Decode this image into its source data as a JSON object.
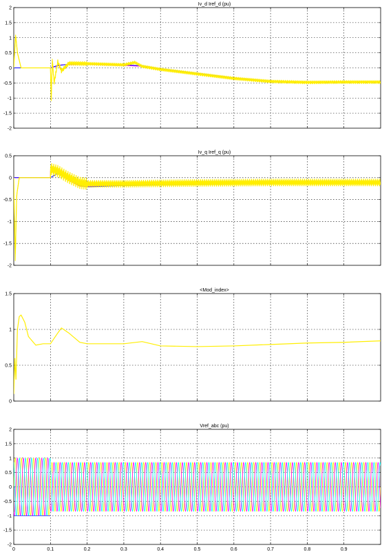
{
  "chart_data": [
    {
      "type": "line",
      "title": "Iv_d Iref_d (pu)",
      "xlim": [
        0,
        1
      ],
      "ylim": [
        -2,
        2
      ],
      "xticks": [
        0,
        0.1,
        0.2,
        0.3,
        0.4,
        0.5,
        0.6,
        0.7,
        0.8,
        0.9
      ],
      "yticks": [
        -2,
        -1.5,
        -1,
        -0.5,
        0,
        0.5,
        1,
        1.5,
        2
      ],
      "grid": true,
      "series": [
        {
          "color": "#ff00ff",
          "x": [
            0,
            0.1,
            0.1,
            0.13,
            0.2,
            0.3,
            0.35,
            0.4,
            0.5,
            0.6,
            0.7,
            0.8,
            1.0
          ],
          "y": [
            0,
            0,
            0,
            0.1,
            0.12,
            0.08,
            0.05,
            -0.05,
            -0.2,
            -0.35,
            -0.45,
            -0.48,
            -0.48
          ]
        },
        {
          "color": "#0000ff",
          "x": [
            0,
            0.1,
            0.12,
            0.15,
            0.2,
            0.3,
            0.35,
            0.4,
            0.5,
            0.6,
            0.7,
            0.8,
            1.0
          ],
          "y": [
            0,
            0,
            0.08,
            0.12,
            0.13,
            0.1,
            0.07,
            -0.03,
            -0.18,
            -0.33,
            -0.44,
            -0.48,
            -0.48
          ]
        },
        {
          "color": "#ffee00",
          "x": [
            0,
            0.005,
            0.01,
            0.02,
            0.1,
            0.102,
            0.105,
            0.11,
            0.12,
            0.13,
            0.15,
            0.2,
            0.3,
            0.33,
            0.35,
            0.4,
            0.5,
            0.6,
            0.7,
            0.8,
            0.9,
            1.0
          ],
          "y": [
            0,
            1.1,
            0.5,
            0,
            0,
            -1.1,
            0.3,
            -0.5,
            0.2,
            -0.1,
            0.15,
            0.14,
            0.1,
            0.18,
            0.05,
            -0.05,
            -0.2,
            -0.35,
            -0.45,
            -0.48,
            -0.47,
            -0.47
          ],
          "ripple": 0.05
        }
      ]
    },
    {
      "type": "line",
      "title": "Iv_q Iref_q (pu)",
      "xlim": [
        0,
        1
      ],
      "ylim": [
        -2,
        0.5
      ],
      "xticks": [
        0,
        0.1,
        0.2,
        0.3,
        0.4,
        0.5,
        0.6,
        0.7,
        0.8,
        0.9
      ],
      "yticks": [
        -2,
        -1.5,
        -1,
        -0.5,
        0,
        0.5
      ],
      "grid": true,
      "series": [
        {
          "color": "#ff00ff",
          "x": [
            0,
            0.1,
            0.1,
            0.12,
            0.15,
            0.18,
            0.2,
            0.3,
            0.5,
            0.7,
            1.0
          ],
          "y": [
            0,
            0,
            0.15,
            0.12,
            -0.05,
            -0.2,
            -0.2,
            -0.17,
            -0.14,
            -0.12,
            -0.12
          ]
        },
        {
          "color": "#0000ff",
          "x": [
            0,
            0.1,
            0.12,
            0.15,
            0.18,
            0.2,
            0.3,
            0.5,
            0.7,
            1.0
          ],
          "y": [
            0,
            0,
            0.1,
            -0.02,
            -0.18,
            -0.21,
            -0.18,
            -0.15,
            -0.13,
            -0.13
          ]
        },
        {
          "color": "#ffee00",
          "x": [
            0,
            0.004,
            0.008,
            0.015,
            0.1,
            0.1,
            0.12,
            0.15,
            0.18,
            0.2,
            0.3,
            0.5,
            0.7,
            1.0
          ],
          "y": [
            0,
            -1.9,
            -0.4,
            0,
            0,
            0.2,
            0.15,
            0,
            -0.12,
            -0.14,
            -0.14,
            -0.12,
            -0.11,
            -0.11
          ],
          "ripple": 0.09
        }
      ]
    },
    {
      "type": "line",
      "title": "<Mod_index>",
      "xlim": [
        0,
        1
      ],
      "ylim": [
        0,
        1.5
      ],
      "xticks": [
        0,
        0.1,
        0.2,
        0.3,
        0.4,
        0.5,
        0.6,
        0.7,
        0.8,
        0.9
      ],
      "yticks": [
        0,
        0.5,
        1,
        1.5
      ],
      "grid": true,
      "series": [
        {
          "color": "#ffee00",
          "x": [
            0,
            0.003,
            0.006,
            0.01,
            0.015,
            0.02,
            0.03,
            0.04,
            0.06,
            0.08,
            0.1,
            0.12,
            0.13,
            0.15,
            0.18,
            0.2,
            0.3,
            0.35,
            0.4,
            0.5,
            0.6,
            0.7,
            0.8,
            0.9,
            1.0
          ],
          "y": [
            0.1,
            0.6,
            0.3,
            1.0,
            1.18,
            1.2,
            1.1,
            0.9,
            0.78,
            0.8,
            0.8,
            0.95,
            1.02,
            0.95,
            0.82,
            0.8,
            0.8,
            0.83,
            0.77,
            0.76,
            0.77,
            0.79,
            0.81,
            0.82,
            0.84
          ],
          "ripple": 0.0
        }
      ]
    },
    {
      "type": "line",
      "title": "Vref_abc (pu)",
      "xlim": [
        0,
        1
      ],
      "ylim": [
        -2,
        2
      ],
      "xticks": [
        0,
        0.1,
        0.2,
        0.3,
        0.4,
        0.5,
        0.6,
        0.7,
        0.8,
        0.9
      ],
      "yticks": [
        -2,
        -1.5,
        -1,
        -0.5,
        0,
        0.5,
        1,
        1.5,
        2
      ],
      "grid": true,
      "three_phase": {
        "colors": [
          "#ffee00",
          "#ff00ff",
          "#00ffff"
        ],
        "frequency_hz": 60,
        "amplitude_before": 1.0,
        "amplitude_after": 0.85,
        "step_time": 0.1
      }
    }
  ],
  "x_tick_labels": [
    "0",
    "0.1",
    "0.2",
    "0.3",
    "0.4",
    "0.5",
    "0.6",
    "0.7",
    "0.8",
    "0.9"
  ]
}
